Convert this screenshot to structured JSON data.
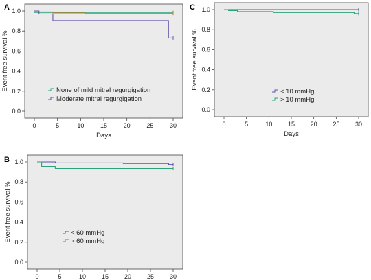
{
  "chart_data": [
    {
      "type": "line",
      "panel": "A",
      "xlabel": "Days",
      "ylabel": "Event free survival %",
      "xlim": [
        0,
        30
      ],
      "ylim": [
        0,
        1.0
      ],
      "xticks": [
        0,
        5,
        10,
        15,
        20,
        25,
        30
      ],
      "yticks": [
        0.0,
        0.2,
        0.4,
        0.6,
        0.8,
        1.0
      ],
      "legend_position": "bottom-left",
      "series": [
        {
          "name": "None of mild mitral regurgigation",
          "color": "#2aa37a",
          "x": [
            0,
            30
          ],
          "y": [
            0.985,
            0.985
          ]
        },
        {
          "name": "",
          "color": "#cc7a2a",
          "x": [
            0,
            4,
            11,
            30
          ],
          "y": [
            0.99,
            0.98,
            0.975,
            0.975
          ]
        },
        {
          "name": "Moderate mitral regurgigation",
          "color": "#6a54a8",
          "x": [
            0,
            1,
            4,
            29,
            30
          ],
          "y": [
            1.0,
            0.97,
            0.905,
            0.73,
            0.73
          ]
        }
      ]
    },
    {
      "type": "line",
      "panel": "C",
      "xlabel": "Days",
      "ylabel": "Event free survival %",
      "xlim": [
        0,
        30
      ],
      "ylim": [
        0,
        1.0
      ],
      "xticks": [
        0,
        5,
        10,
        15,
        20,
        25,
        30
      ],
      "yticks": [
        0.0,
        0.2,
        0.4,
        0.6,
        0.8,
        1.0
      ],
      "legend_position": "bottom-center",
      "series": [
        {
          "name": "< 10 mmHg",
          "color": "#5a52b0",
          "x": [
            0,
            30
          ],
          "y": [
            1.0,
            1.0
          ]
        },
        {
          "name": "> 10 mmHg",
          "color": "#2aa37a",
          "x": [
            0,
            1,
            3,
            11,
            29,
            30
          ],
          "y": [
            1.0,
            0.99,
            0.98,
            0.97,
            0.96,
            0.96
          ]
        }
      ]
    },
    {
      "type": "line",
      "panel": "B",
      "xlabel": "Days",
      "ylabel": "Event free survival %",
      "xlim": [
        0,
        30
      ],
      "ylim": [
        0,
        1.0
      ],
      "xticks": [
        0,
        5,
        10,
        15,
        20,
        25,
        30
      ],
      "yticks": [
        0.0,
        0.2,
        0.4,
        0.6,
        0.8,
        1.0
      ],
      "legend_position": "bottom-center",
      "series": [
        {
          "name": "< 60 mmHg",
          "color": "#5a52b0",
          "x": [
            0,
            4,
            19,
            29,
            30
          ],
          "y": [
            1.0,
            0.99,
            0.985,
            0.975,
            0.975
          ]
        },
        {
          "name": "> 60 mmHg",
          "color": "#2aa37a",
          "x": [
            0,
            1,
            4,
            30
          ],
          "y": [
            1.0,
            0.955,
            0.935,
            0.935
          ]
        }
      ]
    }
  ]
}
